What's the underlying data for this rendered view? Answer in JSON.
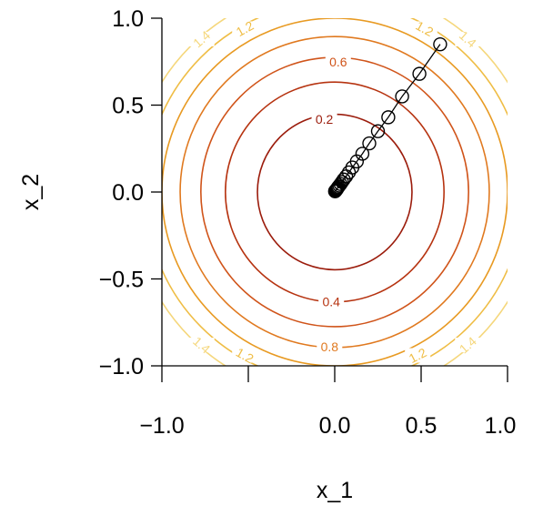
{
  "chart_data": {
    "type": "contour",
    "title": "",
    "xlabel": "x_1",
    "ylabel": "x_2",
    "xlim": [
      -1.0,
      1.0
    ],
    "ylim": [
      -1.0,
      1.0
    ],
    "x_ticks": [
      -1.0,
      -0.5,
      0.0,
      0.5,
      1.0
    ],
    "y_ticks": [
      -1.0,
      -0.5,
      0.0,
      0.5,
      1.0
    ],
    "x_tick_labels": [
      "−1.0",
      "",
      "0.0",
      "0.5",
      "1.0"
    ],
    "y_tick_labels": [
      "−1.0",
      "−0.5",
      "0.0",
      "0.5",
      "1.0"
    ],
    "grid": false,
    "contours": [
      {
        "level": 0.2,
        "label": "0.2",
        "color": "#9b1c0c",
        "label_pos": [
          -0.06,
          0.42
        ]
      },
      {
        "level": 0.4,
        "label": "0.4",
        "color": "#b63310",
        "label_pos": [
          -0.02,
          -0.63
        ]
      },
      {
        "level": 0.6,
        "label": "0.6",
        "color": "#d0541a",
        "label_pos": [
          0.02,
          0.75
        ]
      },
      {
        "level": 0.8,
        "label": "0.8",
        "color": "#e0791f",
        "label_pos": [
          -0.03,
          -0.89
        ]
      },
      {
        "level": 1.0,
        "label": "",
        "color": "#e89a22",
        "label_pos": null
      },
      {
        "level": 1.2,
        "label": "1.2",
        "color": "#efbd45",
        "label_pos": [
          0.52,
          0.94
        ]
      },
      {
        "level": 1.2,
        "label": "1.2",
        "color": "#efbd45",
        "label_pos": [
          -0.52,
          0.94
        ]
      },
      {
        "level": 1.2,
        "label": "1.2",
        "color": "#efbd45",
        "label_pos": [
          0.48,
          -0.94
        ]
      },
      {
        "level": 1.2,
        "label": "1.2",
        "color": "#efbd45",
        "label_pos": [
          -0.52,
          -0.94
        ]
      },
      {
        "level": 1.4,
        "label": "1.4",
        "color": "#f5d77c",
        "label_pos": [
          0.77,
          0.88
        ]
      },
      {
        "level": 1.4,
        "label": "1.4",
        "color": "#f5d77c",
        "label_pos": [
          -0.77,
          0.88
        ]
      },
      {
        "level": 1.4,
        "label": "1.4",
        "color": "#f5d77c",
        "label_pos": [
          0.77,
          -0.88
        ]
      },
      {
        "level": 1.4,
        "label": "1.4",
        "color": "#f5d77c",
        "label_pos": [
          -0.77,
          -0.88
        ]
      }
    ],
    "series": [
      {
        "type": "line-markers",
        "color": "#000000",
        "marker": "open-circle",
        "x": [
          0.61,
          0.49,
          0.39,
          0.31,
          0.25,
          0.2,
          0.16,
          0.128,
          0.102,
          0.082,
          0.066,
          0.052,
          0.042,
          0.034,
          0.027,
          0.021,
          0.017,
          0.014,
          0.011,
          0.009,
          0.007,
          0.005,
          0.004,
          0.003,
          0.002
        ],
        "y": [
          0.85,
          0.68,
          0.55,
          0.43,
          0.35,
          0.28,
          0.22,
          0.176,
          0.141,
          0.113,
          0.09,
          0.072,
          0.058,
          0.046,
          0.037,
          0.03,
          0.024,
          0.019,
          0.015,
          0.012,
          0.01,
          0.008,
          0.006,
          0.005,
          0.004
        ]
      }
    ]
  }
}
